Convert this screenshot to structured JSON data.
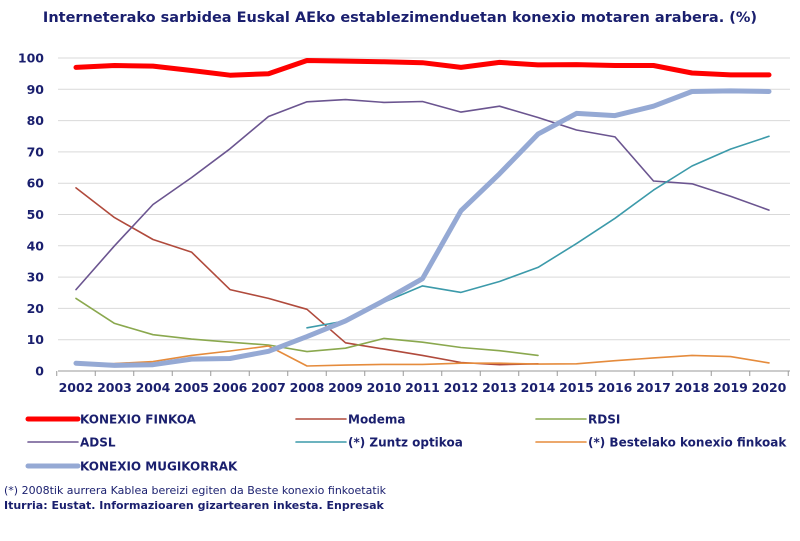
{
  "chart_data": {
    "type": "line",
    "title": "Interneterako sarbidea Euskal AEko establezimenduetan konexio motaren arabera. (%)",
    "x": [
      "2002",
      "2003",
      "2004",
      "2005",
      "2006",
      "2007",
      "2008",
      "2009",
      "2010",
      "2011",
      "2012",
      "2013",
      "2014",
      "2015",
      "2016",
      "2017",
      "2018",
      "2019",
      "2020"
    ],
    "ylim": [
      0,
      100
    ],
    "yticks": [
      0,
      10,
      20,
      30,
      40,
      50,
      60,
      70,
      80,
      90,
      100
    ],
    "grid": "horizontal",
    "legend_position": "bottom",
    "series": [
      {
        "name": "KONEXIO FINKOA",
        "color": "#ff0000",
        "values": [
          97,
          97.6,
          97.4,
          96,
          94.5,
          95,
          99.2,
          99,
          98.8,
          98.5,
          97,
          98.6,
          97.8,
          97.9,
          97.6,
          97.6,
          95.2,
          94.6,
          94.6
        ]
      },
      {
        "name": "Modema",
        "color": "#b04a3c",
        "values": [
          58.5,
          49,
          42,
          38,
          26,
          23.2,
          19.7,
          9,
          7,
          5,
          2.7,
          2,
          2.3,
          null,
          null,
          null,
          null,
          null,
          null
        ]
      },
      {
        "name": "RDSI",
        "color": "#8aa84e",
        "values": [
          23.2,
          15.2,
          11.6,
          10.2,
          9.2,
          8.3,
          6.2,
          7.3,
          10.4,
          9.2,
          7.5,
          6.5,
          5,
          null,
          null,
          null,
          null,
          null,
          null
        ]
      },
      {
        "name": "ADSL",
        "color": "#6b5590",
        "values": [
          26,
          40,
          53.2,
          61.8,
          71,
          81.3,
          86,
          86.7,
          85.8,
          86.1,
          82.7,
          84.6,
          81,
          77,
          74.8,
          60.7,
          59.8,
          55.8,
          51.4
        ]
      },
      {
        "name": "(*) Zuntz optikoa",
        "color": "#3c9aaa",
        "values": [
          null,
          null,
          null,
          null,
          null,
          null,
          13.8,
          16,
          22,
          27.2,
          25.1,
          28.6,
          33.1,
          40.7,
          48.8,
          57.8,
          65.5,
          70.9,
          75
        ]
      },
      {
        "name": "(*) Bestelako konexio finkoak",
        "color": "#e58b3c",
        "values": [
          2.3,
          2.4,
          3,
          5,
          6.4,
          8,
          1.6,
          1.9,
          2.1,
          2.1,
          2.5,
          2.5,
          2.2,
          2.3,
          3.3,
          4.2,
          5,
          4.6,
          2.6
        ]
      },
      {
        "name": "KONEXIO MUGIKORRAK",
        "color": "#95a9d4",
        "values": [
          2.5,
          1.8,
          2,
          3.8,
          4,
          6.3,
          11,
          16,
          22.5,
          29.5,
          51.2,
          63,
          75.7,
          82.3,
          81.6,
          84.6,
          89.3,
          89.5,
          89.3
        ]
      }
    ],
    "footnote": "(*) 2008tik aurrera Kablea bereizi egiten da Beste konexio finkoetatik",
    "source": "Iturria: Eustat. Informazioaren gizartearen inkesta. Enpresak"
  }
}
